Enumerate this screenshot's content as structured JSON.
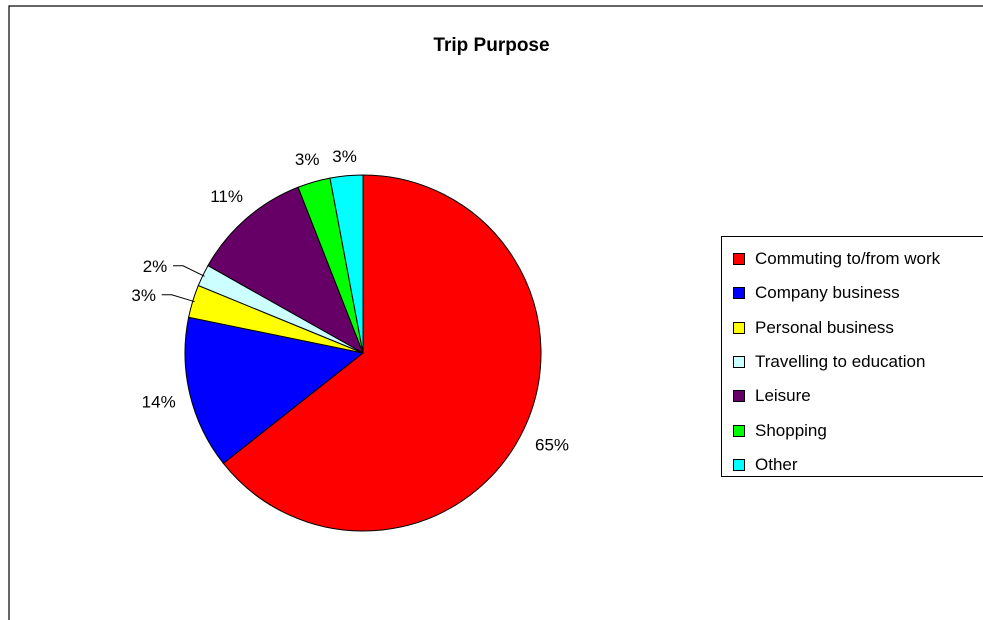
{
  "chart_data": {
    "type": "pie",
    "title": "Trip Purpose",
    "categories": [
      "Commuting to/from work",
      "Company business",
      "Personal business",
      "Travelling to education",
      "Leisure",
      "Shopping",
      "Other"
    ],
    "values": [
      65,
      14,
      3,
      2,
      11,
      3,
      3
    ],
    "value_labels": [
      "65%",
      "14%",
      "3%",
      "2%",
      "11%",
      "3%",
      "3%"
    ],
    "colors": [
      "#FF0000",
      "#0000FF",
      "#FFFF00",
      "#CCFFFF",
      "#660066",
      "#00FF00",
      "#00FFFF"
    ],
    "start_angle": "12 o'clock",
    "direction": "clockwise",
    "legend_position": "right"
  }
}
